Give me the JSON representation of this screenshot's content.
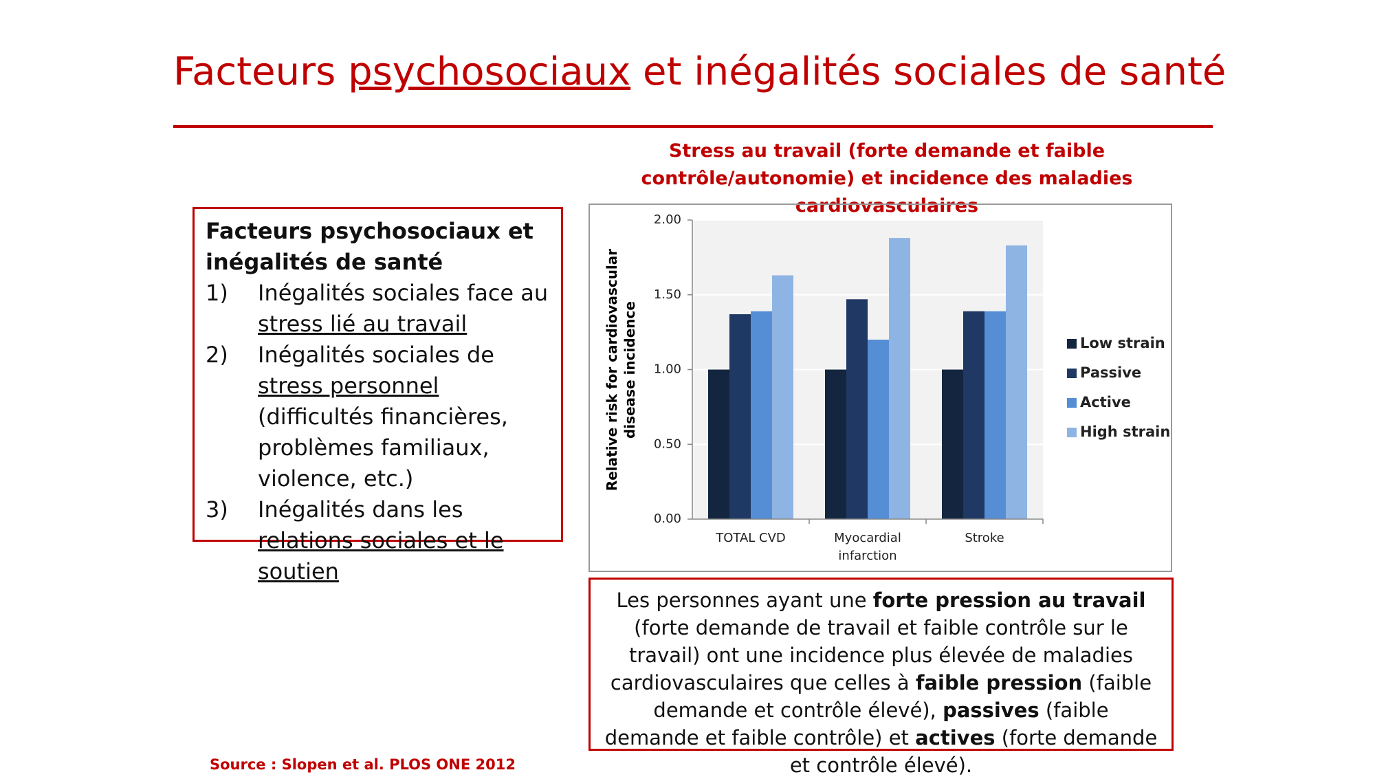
{
  "title_parts": [
    {
      "text": "Facteurs ",
      "underline": false
    },
    {
      "text": "psychosociaux",
      "underline": true
    },
    {
      "text": " et inégalités sociales de santé",
      "underline": false
    }
  ],
  "chart_heading": "Stress au travail (forte demande et faible contrôle/autonomie) et incidence des maladies cardiovasculaires",
  "left_box": {
    "heading": "Facteurs psychosociaux et inégalités de santé",
    "items": [
      {
        "number": "1)",
        "parts": [
          {
            "text": "Inégalités sociales face au ",
            "underline": false
          },
          {
            "text": "stress lié au travail",
            "underline": true
          }
        ]
      },
      {
        "number": "2)",
        "parts": [
          {
            "text": "Inégalités sociales de ",
            "underline": false
          },
          {
            "text": "stress personnel ",
            "underline": true
          },
          {
            "text": "(difficultés financières, problèmes familiaux, violence, etc.)",
            "underline": false
          }
        ]
      },
      {
        "number": "3)",
        "parts": [
          {
            "text": "Inégalités dans les ",
            "underline": false
          },
          {
            "text": "relations sociales et le soutien",
            "underline": true
          }
        ]
      }
    ]
  },
  "summary_parts": [
    {
      "text": "Les personnes ayant une ",
      "bold": false
    },
    {
      "text": "forte pression au travail",
      "bold": true
    },
    {
      "text": " (forte demande de travail et faible contrôle sur le travail) ont une incidence plus élevée de maladies cardiovasculaires que celles à ",
      "bold": false
    },
    {
      "text": "faible pression",
      "bold": true
    },
    {
      "text": " (faible demande et contrôle élevé), ",
      "bold": false
    },
    {
      "text": "passives",
      "bold": true
    },
    {
      "text": " (faible demande et faible contrôle) et ",
      "bold": false
    },
    {
      "text": "actives",
      "bold": true
    },
    {
      "text": " (forte demande et contrôle élevé).",
      "bold": false
    }
  ],
  "source": "Source : Slopen et al. PLOS ONE 2012",
  "chart_data": {
    "type": "bar",
    "y_label": "Relative risk for cardiovascular disease incidence",
    "categories": [
      "TOTAL CVD",
      "Myocardial infarction",
      "Stroke"
    ],
    "series": [
      {
        "name": "Low strain",
        "color": "#14263f",
        "values": [
          1.0,
          1.0,
          1.0
        ]
      },
      {
        "name": "Passive",
        "color": "#1f3864",
        "values": [
          1.37,
          1.47,
          1.39
        ]
      },
      {
        "name": "Active",
        "color": "#558ed5",
        "values": [
          1.39,
          1.2,
          1.39
        ]
      },
      {
        "name": "High strain",
        "color": "#8eb4e3",
        "values": [
          1.63,
          1.88,
          1.83
        ]
      }
    ],
    "ylim": [
      0,
      2
    ],
    "yticks": [
      {
        "value": 0,
        "label": "0.00"
      },
      {
        "value": 0.5,
        "label": "0.50"
      },
      {
        "value": 1,
        "label": "1.00"
      },
      {
        "value": 1.5,
        "label": "1.50"
      },
      {
        "value": 2,
        "label": "2.00"
      }
    ],
    "grid": true,
    "legend": "right"
  }
}
